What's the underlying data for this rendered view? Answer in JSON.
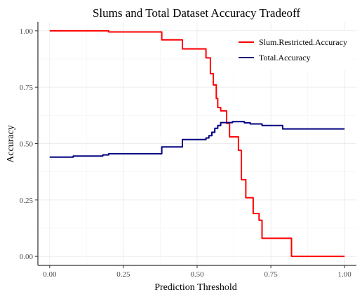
{
  "chart_data": {
    "type": "line",
    "title": "Slums and Total Dataset Accuracy Tradeoff",
    "xlabel": "Prediction Threshold",
    "ylabel": "Accuracy",
    "xlim": [
      -0.04,
      1.04
    ],
    "ylim": [
      -0.04,
      1.04
    ],
    "xticks": [
      0,
      0.25,
      0.5,
      0.75,
      1
    ],
    "xtick_labels": [
      "0.00",
      "0.25",
      "0.50",
      "0.75",
      "1.00"
    ],
    "yticks": [
      0,
      0.25,
      0.5,
      0.75,
      1
    ],
    "ytick_labels": [
      "0.00",
      "0.25",
      "0.50",
      "0.75",
      "1.00"
    ],
    "grid": true,
    "legend": {
      "position": "top-right"
    },
    "series": [
      {
        "name": "Slum.Restricted.Accuracy",
        "color": "#ff0000",
        "x": [
          0.0,
          0.2,
          0.2,
          0.38,
          0.38,
          0.45,
          0.45,
          0.53,
          0.53,
          0.545,
          0.545,
          0.555,
          0.555,
          0.565,
          0.565,
          0.57,
          0.57,
          0.58,
          0.58,
          0.6,
          0.6,
          0.61,
          0.61,
          0.64,
          0.64,
          0.65,
          0.65,
          0.665,
          0.665,
          0.69,
          0.69,
          0.71,
          0.71,
          0.72,
          0.72,
          0.82,
          0.82,
          1.0
        ],
        "y": [
          1.0,
          1.0,
          0.995,
          0.995,
          0.96,
          0.96,
          0.92,
          0.92,
          0.88,
          0.88,
          0.81,
          0.81,
          0.76,
          0.76,
          0.7,
          0.7,
          0.66,
          0.66,
          0.645,
          0.645,
          0.59,
          0.59,
          0.53,
          0.53,
          0.47,
          0.47,
          0.34,
          0.34,
          0.26,
          0.26,
          0.19,
          0.19,
          0.16,
          0.16,
          0.08,
          0.08,
          0.0,
          0.0
        ]
      },
      {
        "name": "Total.Accuracy",
        "color": "#000080",
        "x": [
          0.0,
          0.08,
          0.08,
          0.18,
          0.18,
          0.2,
          0.2,
          0.38,
          0.38,
          0.45,
          0.45,
          0.53,
          0.53,
          0.54,
          0.54,
          0.55,
          0.55,
          0.56,
          0.56,
          0.57,
          0.57,
          0.58,
          0.58,
          0.62,
          0.62,
          0.66,
          0.66,
          0.68,
          0.68,
          0.72,
          0.72,
          0.79,
          0.79,
          1.0
        ],
        "y": [
          0.44,
          0.44,
          0.445,
          0.445,
          0.45,
          0.45,
          0.455,
          0.455,
          0.485,
          0.485,
          0.518,
          0.518,
          0.525,
          0.525,
          0.535,
          0.535,
          0.55,
          0.55,
          0.568,
          0.568,
          0.58,
          0.58,
          0.593,
          0.593,
          0.597,
          0.597,
          0.592,
          0.592,
          0.587,
          0.587,
          0.58,
          0.58,
          0.565,
          0.565
        ]
      }
    ]
  }
}
